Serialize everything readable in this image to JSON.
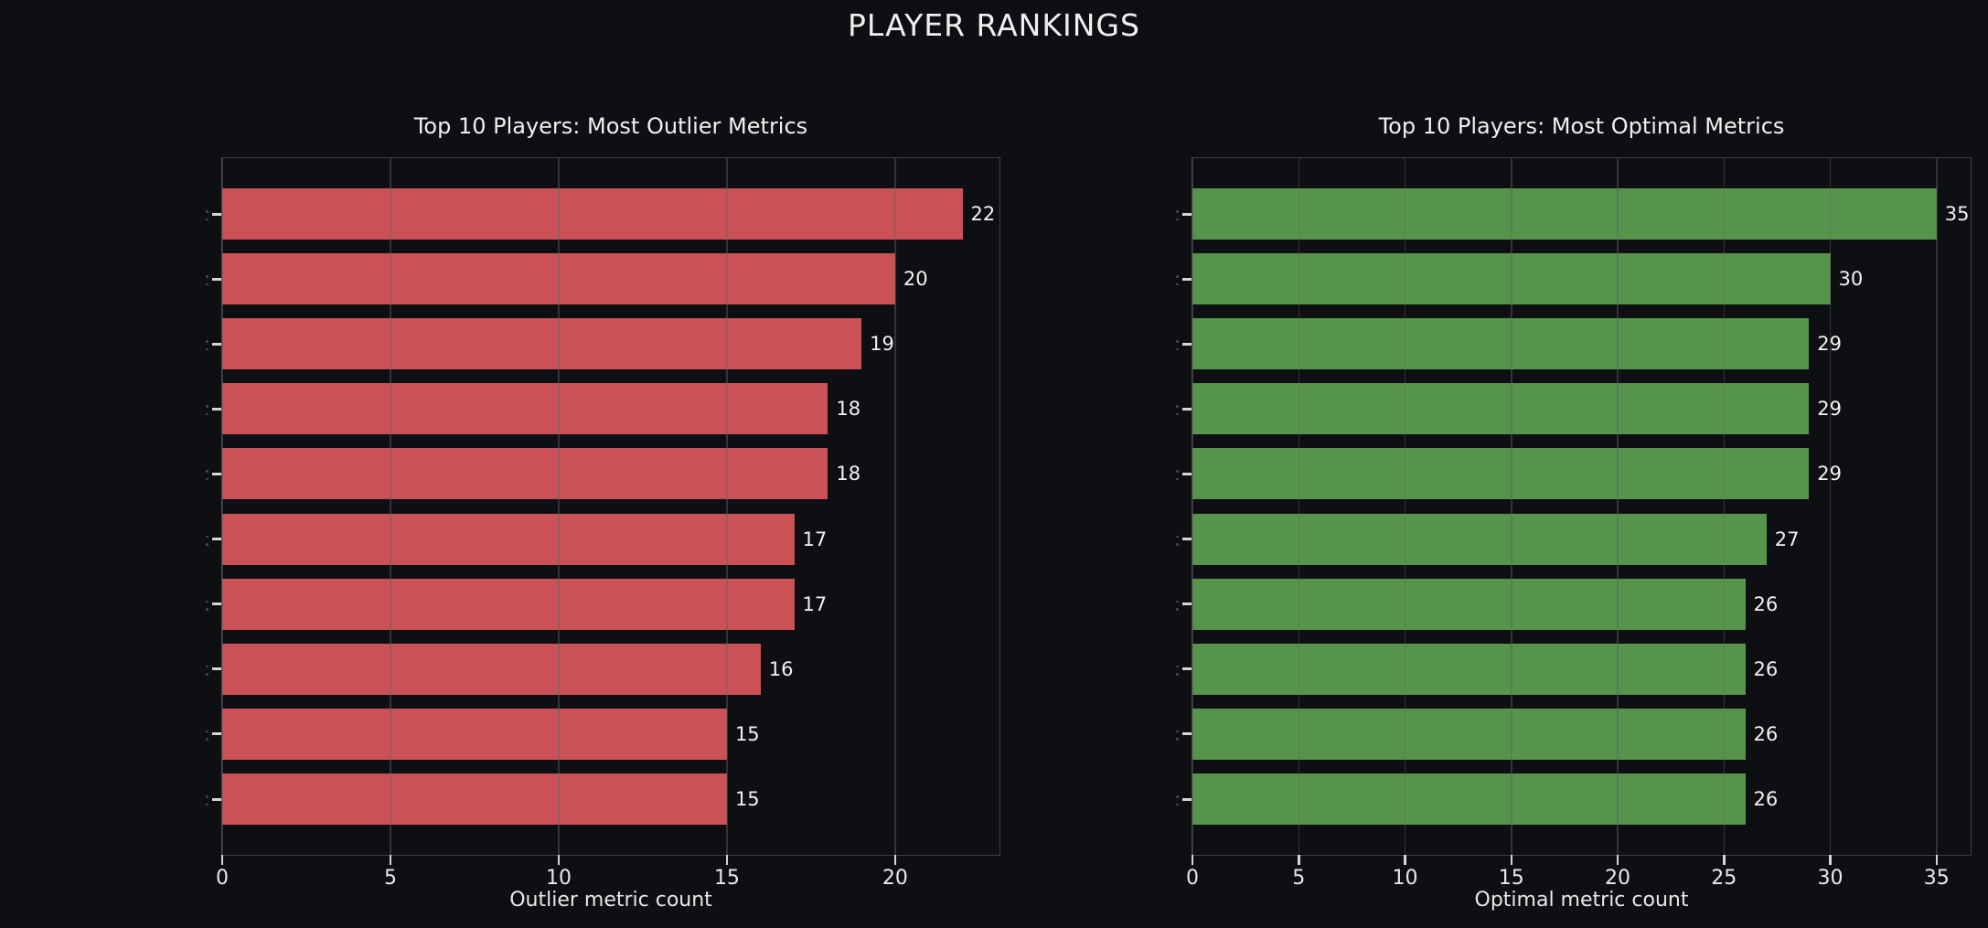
{
  "figure_title": "PLAYER RANKINGS",
  "colors": {
    "background": "#0e0f13",
    "outlier_bar": "#ca5257",
    "optimal_bar": "#55944a",
    "text": "#f0f0f0",
    "spine": "#3b3e43"
  },
  "chart_data": [
    {
      "type": "bar",
      "orientation": "horizontal",
      "title": "Top 10 Players: Most Outlier Metrics",
      "xlabel": "Outlier metric count",
      "categories": [
        "-",
        "-",
        "-",
        "-",
        "-",
        "-",
        "-",
        "-",
        "-",
        "-"
      ],
      "values": [
        22,
        20,
        19,
        18,
        18,
        17,
        17,
        16,
        15,
        15
      ],
      "value_labels": [
        "22",
        "20",
        "19",
        "18",
        "18",
        "17",
        "17",
        "16",
        "15",
        "15"
      ],
      "x_ticks": [
        0,
        5,
        10,
        15,
        20
      ],
      "xlim": [
        0,
        23.1
      ],
      "bar_color": "#ca5257",
      "grid": true,
      "legend": "none"
    },
    {
      "type": "bar",
      "orientation": "horizontal",
      "title": "Top 10 Players: Most Optimal Metrics",
      "xlabel": "Optimal metric count",
      "categories": [
        "-",
        "-",
        "-",
        "-",
        "-",
        "-",
        "-",
        "-",
        "-",
        "-"
      ],
      "values": [
        35,
        30,
        29,
        29,
        29,
        27,
        26,
        26,
        26,
        26
      ],
      "value_labels": [
        "35",
        "30",
        "29",
        "29",
        "29",
        "27",
        "26",
        "26",
        "26",
        "26"
      ],
      "x_ticks": [
        0,
        5,
        10,
        15,
        20,
        25,
        30,
        35
      ],
      "xlim": [
        0,
        36.6
      ],
      "bar_color": "#55944a",
      "grid": true,
      "legend": "none"
    }
  ]
}
